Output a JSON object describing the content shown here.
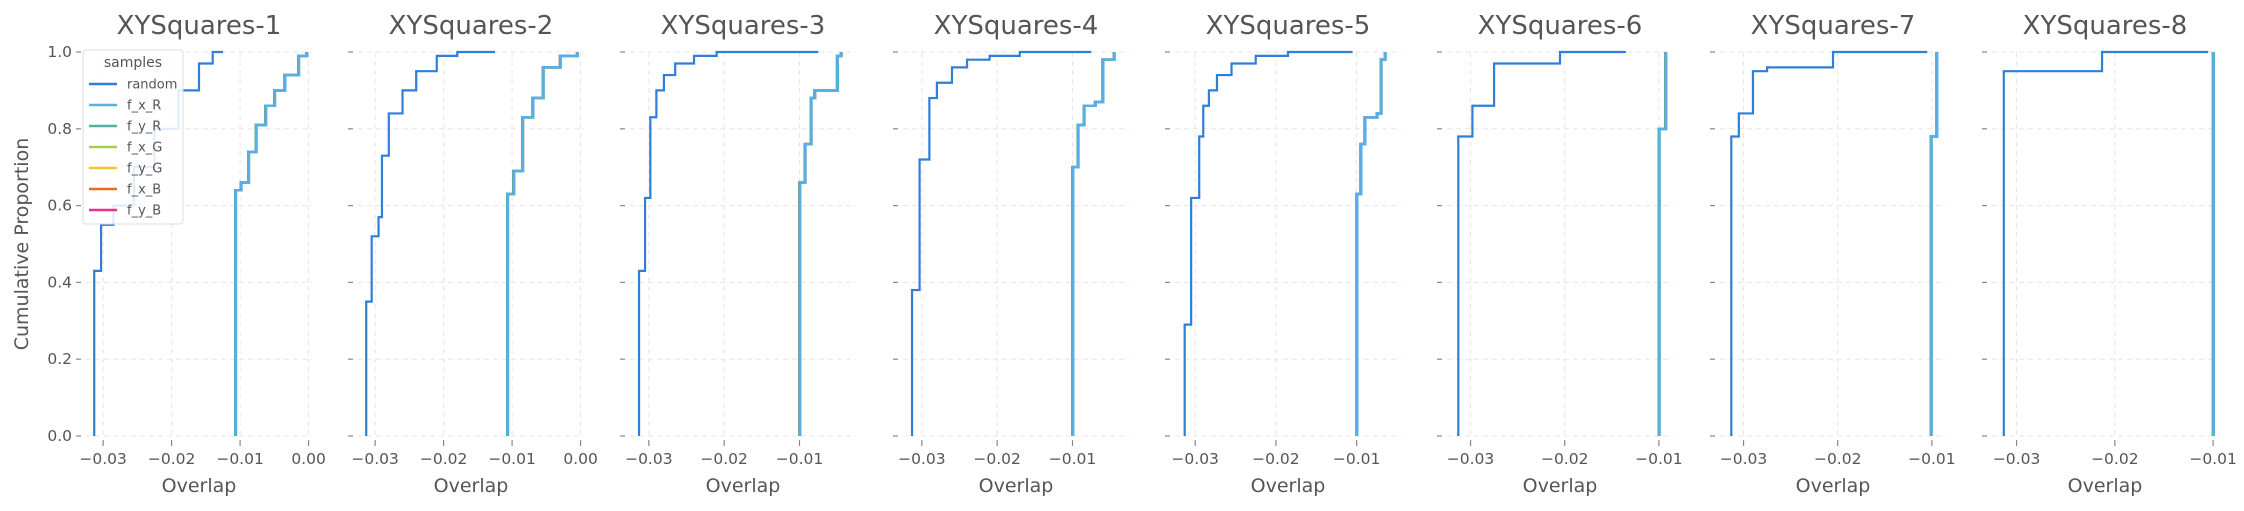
{
  "chart_data": {
    "type": "line",
    "ylabel": "Cumulative Proportion",
    "legend": {
      "title": "samples",
      "placement": "upper-left of first panel",
      "entries": [
        {
          "name": "random",
          "color": "#2f7ed8"
        },
        {
          "name": "f_x_R",
          "color": "#5aaee8"
        },
        {
          "name": "f_y_R",
          "color": "#4fb3a4"
        },
        {
          "name": "f_x_G",
          "color": "#a8cf3f"
        },
        {
          "name": "f_y_G",
          "color": "#f4c430"
        },
        {
          "name": "f_x_B",
          "color": "#ee6a24"
        },
        {
          "name": "f_y_B",
          "color": "#e8318b"
        }
      ]
    },
    "grid": true,
    "ylim": [
      0,
      1.0
    ],
    "yticks": [
      "0.0",
      "0.2",
      "0.4",
      "0.6",
      "0.8",
      "1.0"
    ],
    "panels": [
      {
        "title": "XYSquares-1",
        "xlabel": "Overlap",
        "xlim": [
          -0.0325,
          0.0005
        ],
        "xticks": [
          -0.03,
          -0.02,
          -0.01,
          0.0
        ],
        "xtick_labels": [
          "−0.03",
          "−0.02",
          "−0.01",
          "0.00"
        ],
        "random": [
          [
            -0.0313,
            0.0
          ],
          [
            -0.0313,
            0.43
          ],
          [
            -0.0303,
            0.44
          ],
          [
            -0.0303,
            0.55
          ],
          [
            -0.0285,
            0.6
          ],
          [
            -0.0255,
            0.7
          ],
          [
            -0.0225,
            0.8
          ],
          [
            -0.019,
            0.9
          ],
          [
            -0.016,
            0.97
          ],
          [
            -0.014,
            1.0
          ],
          [
            -0.0125,
            1.0
          ]
        ],
        "features": [
          [
            -0.0107,
            0.0
          ],
          [
            -0.0107,
            0.64
          ],
          [
            -0.0099,
            0.66
          ],
          [
            -0.0088,
            0.74
          ],
          [
            -0.0077,
            0.81
          ],
          [
            -0.0063,
            0.86
          ],
          [
            -0.005,
            0.9
          ],
          [
            -0.0035,
            0.94
          ],
          [
            -0.0015,
            0.99
          ],
          [
            -0.0003,
            1.0
          ]
        ]
      },
      {
        "title": "XYSquares-2",
        "xlabel": "Overlap",
        "xlim": [
          -0.0325,
          0.0005
        ],
        "xticks": [
          -0.03,
          -0.02,
          -0.01,
          0.0
        ],
        "xtick_labels": [
          "−0.03",
          "−0.02",
          "−0.01",
          "0.00"
        ],
        "random": [
          [
            -0.0313,
            0.0
          ],
          [
            -0.0313,
            0.35
          ],
          [
            -0.0305,
            0.52
          ],
          [
            -0.0295,
            0.57
          ],
          [
            -0.029,
            0.73
          ],
          [
            -0.028,
            0.84
          ],
          [
            -0.026,
            0.9
          ],
          [
            -0.024,
            0.95
          ],
          [
            -0.021,
            0.99
          ],
          [
            -0.018,
            1.0
          ],
          [
            -0.0125,
            1.0
          ]
        ],
        "features": [
          [
            -0.0107,
            0.0
          ],
          [
            -0.0107,
            0.63
          ],
          [
            -0.0098,
            0.69
          ],
          [
            -0.0085,
            0.83
          ],
          [
            -0.007,
            0.88
          ],
          [
            -0.0055,
            0.96
          ],
          [
            -0.003,
            0.99
          ],
          [
            -0.0005,
            1.0
          ]
        ]
      },
      {
        "title": "XYSquares-3",
        "xlabel": "Overlap",
        "xlim": [
          -0.0325,
          -0.0025
        ],
        "xticks": [
          -0.03,
          -0.02,
          -0.01
        ],
        "xtick_labels": [
          "−0.03",
          "−0.02",
          "−0.01"
        ],
        "random": [
          [
            -0.0313,
            0.0
          ],
          [
            -0.0313,
            0.43
          ],
          [
            -0.0305,
            0.62
          ],
          [
            -0.0298,
            0.83
          ],
          [
            -0.029,
            0.9
          ],
          [
            -0.028,
            0.94
          ],
          [
            -0.0265,
            0.97
          ],
          [
            -0.024,
            0.99
          ],
          [
            -0.021,
            1.0
          ],
          [
            -0.0075,
            1.0
          ]
        ],
        "features": [
          [
            -0.01,
            0.0
          ],
          [
            -0.01,
            0.66
          ],
          [
            -0.0093,
            0.76
          ],
          [
            -0.0085,
            0.88
          ],
          [
            -0.008,
            0.9
          ],
          [
            -0.0055,
            0.9
          ],
          [
            -0.005,
            0.99
          ],
          [
            -0.0045,
            1.0
          ]
        ]
      },
      {
        "title": "XYSquares-4",
        "xlabel": "Overlap",
        "xlim": [
          -0.0325,
          -0.0025
        ],
        "xticks": [
          -0.03,
          -0.02,
          -0.01
        ],
        "xtick_labels": [
          "−0.03",
          "−0.02",
          "−0.01"
        ],
        "random": [
          [
            -0.0313,
            0.0
          ],
          [
            -0.0313,
            0.38
          ],
          [
            -0.0303,
            0.72
          ],
          [
            -0.029,
            0.88
          ],
          [
            -0.028,
            0.92
          ],
          [
            -0.026,
            0.96
          ],
          [
            -0.024,
            0.98
          ],
          [
            -0.021,
            0.99
          ],
          [
            -0.017,
            1.0
          ],
          [
            -0.0075,
            1.0
          ]
        ],
        "features": [
          [
            -0.01,
            0.0
          ],
          [
            -0.01,
            0.7
          ],
          [
            -0.0093,
            0.81
          ],
          [
            -0.0085,
            0.86
          ],
          [
            -0.007,
            0.87
          ],
          [
            -0.006,
            0.98
          ],
          [
            -0.0045,
            1.0
          ]
        ]
      },
      {
        "title": "XYSquares-5",
        "xlabel": "Overlap",
        "xlim": [
          -0.0325,
          -0.0045
        ],
        "xticks": [
          -0.03,
          -0.02,
          -0.01
        ],
        "xtick_labels": [
          "−0.03",
          "−0.02",
          "−0.01"
        ],
        "random": [
          [
            -0.0313,
            0.0
          ],
          [
            -0.0313,
            0.29
          ],
          [
            -0.0305,
            0.62
          ],
          [
            -0.0295,
            0.78
          ],
          [
            -0.029,
            0.86
          ],
          [
            -0.0283,
            0.9
          ],
          [
            -0.0273,
            0.94
          ],
          [
            -0.0255,
            0.97
          ],
          [
            -0.0225,
            0.99
          ],
          [
            -0.0185,
            1.0
          ],
          [
            -0.0105,
            1.0
          ]
        ],
        "features": [
          [
            -0.01,
            0.0
          ],
          [
            -0.01,
            0.63
          ],
          [
            -0.0095,
            0.76
          ],
          [
            -0.009,
            0.83
          ],
          [
            -0.0075,
            0.84
          ],
          [
            -0.007,
            0.98
          ],
          [
            -0.0065,
            1.0
          ]
        ]
      },
      {
        "title": "XYSquares-6",
        "xlabel": "Overlap",
        "xlim": [
          -0.0325,
          -0.0085
        ],
        "xticks": [
          -0.03,
          -0.02,
          -0.01
        ],
        "xtick_labels": [
          "−0.03",
          "−0.02",
          "−0.01"
        ],
        "random": [
          [
            -0.0313,
            0.0
          ],
          [
            -0.0313,
            0.78
          ],
          [
            -0.0298,
            0.86
          ],
          [
            -0.0275,
            0.87
          ],
          [
            -0.0275,
            0.97
          ],
          [
            -0.0205,
            0.97
          ],
          [
            -0.0205,
            1.0
          ],
          [
            -0.0135,
            1.0
          ]
        ],
        "features": [
          [
            -0.01,
            0.0
          ],
          [
            -0.01,
            0.8
          ],
          [
            -0.0093,
            0.8
          ],
          [
            -0.0093,
            1.0
          ]
        ]
      },
      {
        "title": "XYSquares-7",
        "xlabel": "Overlap",
        "xlim": [
          -0.0325,
          -0.0085
        ],
        "xticks": [
          -0.03,
          -0.02,
          -0.01
        ],
        "xtick_labels": [
          "−0.03",
          "−0.02",
          "−0.01"
        ],
        "random": [
          [
            -0.0313,
            0.0
          ],
          [
            -0.0313,
            0.78
          ],
          [
            -0.0305,
            0.84
          ],
          [
            -0.029,
            0.95
          ],
          [
            -0.0275,
            0.96
          ],
          [
            -0.0205,
            0.97
          ],
          [
            -0.0205,
            1.0
          ],
          [
            -0.0105,
            1.0
          ]
        ],
        "features": [
          [
            -0.0101,
            0.0
          ],
          [
            -0.0101,
            0.78
          ],
          [
            -0.0095,
            0.78
          ],
          [
            -0.0095,
            1.0
          ]
        ]
      },
      {
        "title": "XYSquares-8",
        "xlabel": "Overlap",
        "xlim": [
          -0.0325,
          -0.0095
        ],
        "xticks": [
          -0.03,
          -0.02,
          -0.01
        ],
        "xtick_labels": [
          "−0.03",
          "−0.02",
          "−0.01"
        ],
        "random": [
          [
            -0.0313,
            0.0
          ],
          [
            -0.0313,
            0.95
          ],
          [
            -0.0213,
            0.95
          ],
          [
            -0.0213,
            1.0
          ],
          [
            -0.0105,
            1.0
          ]
        ],
        "features": [
          [
            -0.01,
            0.0
          ],
          [
            -0.01,
            1.0
          ]
        ]
      }
    ]
  }
}
